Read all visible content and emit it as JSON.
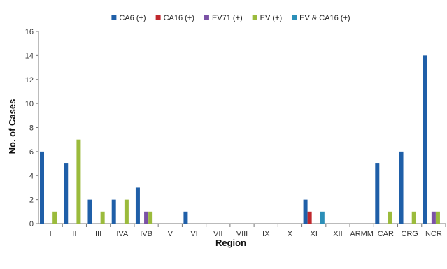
{
  "chart_data": {
    "type": "bar",
    "title": "",
    "xlabel": "Region",
    "ylabel": "No. of Cases",
    "ylim": [
      0,
      16
    ],
    "yticks": [
      0,
      2,
      4,
      6,
      8,
      10,
      12,
      14,
      16
    ],
    "grid": false,
    "legend_position": "top",
    "categories": [
      "I",
      "II",
      "III",
      "IVA",
      "IVB",
      "V",
      "VI",
      "VII",
      "VIII",
      "IX",
      "X",
      "XI",
      "XII",
      "ARMM",
      "CAR",
      "CRG",
      "NCR"
    ],
    "series": [
      {
        "name": "CA6 (+)",
        "color": "#1f5fa8",
        "values": [
          6,
          5,
          2,
          2,
          3,
          0,
          1,
          0,
          0,
          0,
          0,
          2,
          0,
          0,
          5,
          6,
          14
        ]
      },
      {
        "name": "CA16 (+)",
        "color": "#c0282d",
        "values": [
          0,
          0,
          0,
          0,
          0,
          0,
          0,
          0,
          0,
          0,
          0,
          1,
          0,
          0,
          0,
          0,
          0
        ]
      },
      {
        "name": "EV71 (+)",
        "color": "#7b52a6",
        "values": [
          0,
          0,
          0,
          0,
          1,
          0,
          0,
          0,
          0,
          0,
          0,
          0,
          0,
          0,
          0,
          0,
          1
        ]
      },
      {
        "name": "EV (+)",
        "color": "#9bbb3c",
        "values": [
          1,
          7,
          1,
          2,
          1,
          0,
          0,
          0,
          0,
          0,
          0,
          0,
          0,
          0,
          1,
          1,
          1
        ]
      },
      {
        "name": "EV & CA16 (+)",
        "color": "#2b8fb8",
        "values": [
          0,
          0,
          0,
          0,
          0,
          0,
          0,
          0,
          0,
          0,
          0,
          1,
          0,
          0,
          0,
          0,
          0
        ]
      }
    ]
  }
}
